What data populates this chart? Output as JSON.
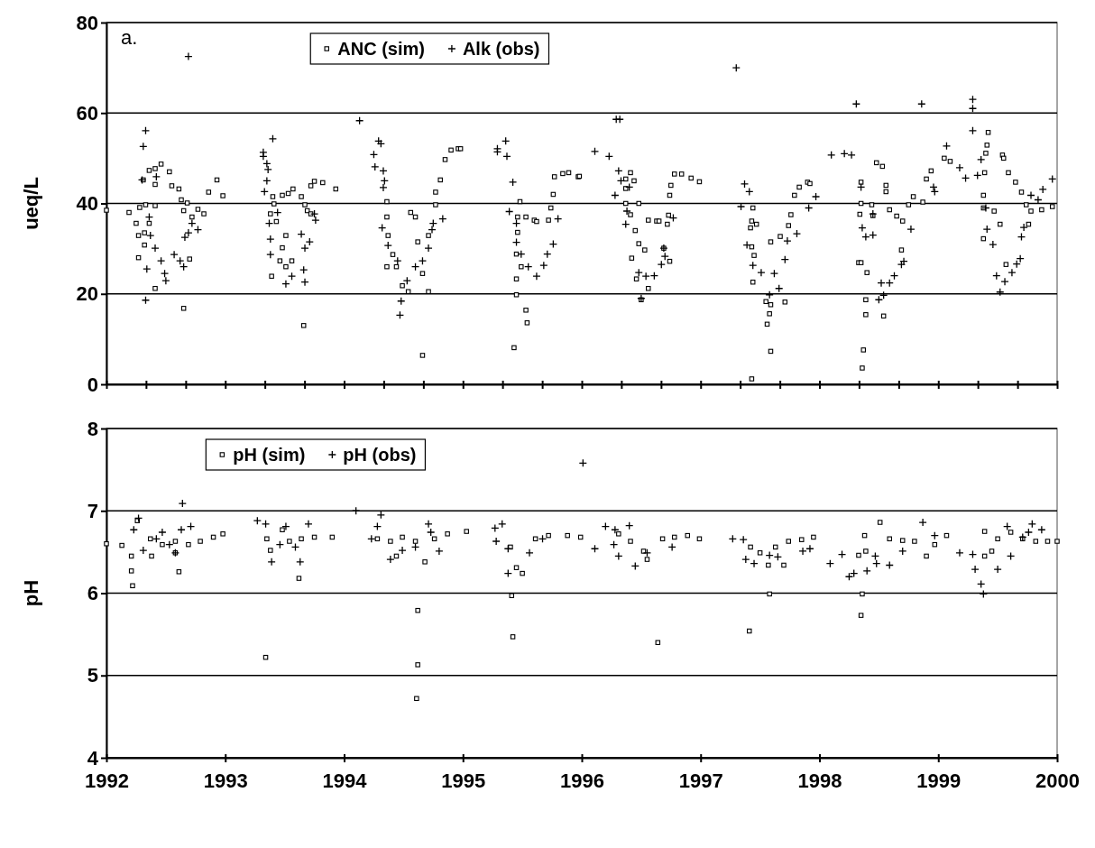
{
  "chart_data": [
    {
      "type": "scatter",
      "ylabel": "ueq/L",
      "annotations": [
        "a."
      ],
      "xlim": [
        1992,
        2000
      ],
      "ylim": [
        0,
        80
      ],
      "yticks": [
        0,
        20,
        40,
        60,
        80
      ],
      "xticks": [
        {
          "value": 1992,
          "label": null
        },
        {
          "value": 1992.333,
          "label": null
        },
        {
          "value": 1992.667,
          "label": null
        },
        {
          "value": 1993,
          "label": null
        },
        {
          "value": 1993.333,
          "label": null
        },
        {
          "value": 1993.667,
          "label": null
        },
        {
          "value": 1994,
          "label": null
        },
        {
          "value": 1994.333,
          "label": null
        },
        {
          "value": 1994.667,
          "label": null
        },
        {
          "value": 1995,
          "label": null
        },
        {
          "value": 1995.333,
          "label": null
        },
        {
          "value": 1995.667,
          "label": null
        },
        {
          "value": 1996,
          "label": null
        },
        {
          "value": 1996.333,
          "label": null
        },
        {
          "value": 1996.667,
          "label": null
        },
        {
          "value": 1997,
          "label": null
        },
        {
          "value": 1997.333,
          "label": null
        },
        {
          "value": 1997.667,
          "label": null
        },
        {
          "value": 1998,
          "label": null
        },
        {
          "value": 1998.333,
          "label": null
        },
        {
          "value": 1998.667,
          "label": null
        },
        {
          "value": 1999,
          "label": null
        },
        {
          "value": 1999.333,
          "label": null
        },
        {
          "value": 1999.667,
          "label": null
        },
        {
          "value": 2000,
          "label": null
        }
      ],
      "tick_labels": "y",
      "grid": "y",
      "legend": "top",
      "series": [
        {
          "name": "ANC (sim)",
          "color": "#000000",
          "marker": "square",
          "x": [
            1992.0,
            1992.19,
            1992.25,
            1992.27,
            1992.27,
            1992.28,
            1992.31,
            1992.36,
            1992.41,
            1992.46,
            1992.53,
            1992.55,
            1992.61,
            1992.63,
            1992.68,
            1992.65,
            1992.72,
            1992.77,
            1992.82,
            1992.86,
            1992.93,
            1992.98,
            1992.33,
            1992.32,
            1992.32,
            1992.36,
            1992.41,
            1992.65,
            1992.7,
            1992.41,
            1992.41,
            1993.39,
            1993.38,
            1993.4,
            1993.41,
            1993.48,
            1993.53,
            1993.57,
            1993.64,
            1993.67,
            1993.69,
            1993.72,
            1993.72,
            1993.75,
            1993.82,
            1993.93,
            1993.66,
            1993.43,
            1993.51,
            1993.46,
            1993.51,
            1993.56,
            1993.48,
            1994.36,
            1994.36,
            1994.37,
            1994.36,
            1994.41,
            1994.44,
            1994.49,
            1994.54,
            1994.56,
            1994.6,
            1994.62,
            1994.66,
            1994.66,
            1994.71,
            1994.71,
            1994.77,
            1994.77,
            1994.81,
            1994.85,
            1994.9,
            1994.96,
            1994.98,
            1995.45,
            1995.53,
            1995.54,
            1995.43,
            1995.48,
            1995.46,
            1995.46,
            1995.45,
            1995.49,
            1995.45,
            1995.53,
            1995.6,
            1995.62,
            1995.72,
            1995.74,
            1995.76,
            1995.77,
            1995.84,
            1995.89,
            1995.97,
            1995.98,
            1996.37,
            1996.41,
            1996.44,
            1996.37,
            1996.37,
            1996.48,
            1996.41,
            1996.45,
            1996.48,
            1996.42,
            1996.53,
            1996.46,
            1996.5,
            1996.56,
            1996.56,
            1996.63,
            1996.65,
            1996.74,
            1996.69,
            1996.72,
            1996.73,
            1996.74,
            1996.75,
            1996.78,
            1996.84,
            1996.92,
            1996.99,
            1997.44,
            1997.43,
            1997.42,
            1997.43,
            1997.45,
            1997.44,
            1997.55,
            1997.59,
            1997.58,
            1997.56,
            1997.59,
            1997.43,
            1997.71,
            1997.47,
            1997.59,
            1997.67,
            1997.74,
            1997.76,
            1997.79,
            1997.83,
            1997.9,
            1997.92,
            1998.35,
            1998.35,
            1998.34,
            1998.33,
            1998.35,
            1998.4,
            1998.39,
            1998.39,
            1998.37,
            1998.36,
            1998.54,
            1998.44,
            1998.45,
            1998.48,
            1998.53,
            1998.56,
            1998.56,
            1998.59,
            1998.65,
            1998.7,
            1998.75,
            1998.79,
            1998.9,
            1998.94,
            1998.87,
            1998.69,
            1999.05,
            1999.1,
            1999.42,
            1999.41,
            1999.4,
            1999.39,
            1999.38,
            1999.38,
            1999.38,
            1999.47,
            1999.52,
            1999.54,
            1999.55,
            1999.59,
            1999.65,
            1999.7,
            1999.74,
            1999.76,
            1999.78,
            1999.87,
            1999.96,
            1999.57
          ],
          "values": [
            38.5,
            38.0,
            35.6,
            32.9,
            28.0,
            39.1,
            45.2,
            47.3,
            47.7,
            48.7,
            47.0,
            43.9,
            43.2,
            40.8,
            40.1,
            38.4,
            37.0,
            38.7,
            37.7,
            42.5,
            45.2,
            41.7,
            39.7,
            33.5,
            30.8,
            35.6,
            21.2,
            16.8,
            27.7,
            39.5,
            44.2,
            23.9,
            37.7,
            41.5,
            39.9,
            41.8,
            42.2,
            43.2,
            41.5,
            39.7,
            38.4,
            37.7,
            43.9,
            44.9,
            44.6,
            43.2,
            13.0,
            36.0,
            32.9,
            27.3,
            26.0,
            27.3,
            30.2,
            40.4,
            37.0,
            32.9,
            26.0,
            28.7,
            26.0,
            21.8,
            20.5,
            38.0,
            37.0,
            31.5,
            24.5,
            6.4,
            20.5,
            32.9,
            39.7,
            42.5,
            45.2,
            49.7,
            51.8,
            52.1,
            52.1,
            19.8,
            16.4,
            13.6,
            8.1,
            40.4,
            37.0,
            33.6,
            28.8,
            26.0,
            23.3,
            37.0,
            36.3,
            36.0,
            36.3,
            39.0,
            42.0,
            45.9,
            46.6,
            46.8,
            45.9,
            46.0,
            45.4,
            46.8,
            45.0,
            43.3,
            40.0,
            40.0,
            37.5,
            34.0,
            31.1,
            27.9,
            29.7,
            23.3,
            18.7,
            21.2,
            36.3,
            36.1,
            36.1,
            27.2,
            30.1,
            35.4,
            37.4,
            41.8,
            44.0,
            46.5,
            46.5,
            45.6,
            44.8,
            39.0,
            36.1,
            34.6,
            30.4,
            28.5,
            22.6,
            18.3,
            17.6,
            15.6,
            13.3,
            7.3,
            1.2,
            18.2,
            35.4,
            31.5,
            32.7,
            35.1,
            37.5,
            41.8,
            43.6,
            44.7,
            44.4,
            44.7,
            40.0,
            37.6,
            26.9,
            26.9,
            24.7,
            18.7,
            15.4,
            7.6,
            3.6,
            15.1,
            39.7,
            37.3,
            49.0,
            48.2,
            44.0,
            42.6,
            38.6,
            37.2,
            36.1,
            39.7,
            41.5,
            45.4,
            47.2,
            40.3,
            29.7,
            50.0,
            49.3,
            55.7,
            52.9,
            51.1,
            46.8,
            41.8,
            39.0,
            32.2,
            38.3,
            35.4,
            50.7,
            50.0,
            46.8,
            44.7,
            42.5,
            39.7,
            35.4,
            38.3,
            38.6,
            39.3,
            26.5
          ]
        },
        {
          "name": "Alk (obs)",
          "color": "#000000",
          "marker": "cross",
          "x": [
            1992.69,
            1992.33,
            1992.31,
            1992.34,
            1992.33,
            1992.3,
            1992.36,
            1992.37,
            1992.41,
            1992.46,
            1992.49,
            1992.5,
            1992.57,
            1992.62,
            1992.65,
            1992.66,
            1992.69,
            1992.77,
            1992.72,
            1992.42,
            1993.32,
            1993.32,
            1993.4,
            1993.35,
            1993.36,
            1993.35,
            1993.33,
            1993.37,
            1993.38,
            1993.38,
            1993.44,
            1993.51,
            1993.56,
            1993.64,
            1993.67,
            1993.66,
            1993.67,
            1993.71,
            1993.75,
            1993.76,
            1994.13,
            1994.29,
            1994.31,
            1994.25,
            1994.26,
            1994.33,
            1994.34,
            1994.33,
            1994.32,
            1994.37,
            1994.45,
            1994.48,
            1994.47,
            1994.53,
            1994.6,
            1994.66,
            1994.71,
            1994.74,
            1994.75,
            1994.83,
            1995.29,
            1995.29,
            1995.36,
            1995.37,
            1995.42,
            1995.39,
            1995.45,
            1995.45,
            1995.49,
            1995.55,
            1995.62,
            1995.68,
            1995.71,
            1995.76,
            1995.8,
            1997.3,
            1996.11,
            1996.23,
            1996.29,
            1996.32,
            1996.31,
            1996.28,
            1996.33,
            1996.4,
            1996.38,
            1996.37,
            1996.48,
            1996.5,
            1996.54,
            1996.61,
            1996.67,
            1996.69,
            1996.7,
            1996.77,
            1997.37,
            1997.41,
            1997.34,
            1997.39,
            1997.44,
            1997.51,
            1997.58,
            1997.66,
            1997.62,
            1997.71,
            1997.73,
            1997.81,
            1997.91,
            1997.97,
            1998.1,
            1998.21,
            1998.27,
            1998.31,
            1998.35,
            1998.36,
            1998.39,
            1998.45,
            1998.45,
            1998.5,
            1998.54,
            1998.52,
            1998.59,
            1998.63,
            1998.69,
            1998.71,
            1998.77,
            1998.86,
            1998.96,
            1998.97,
            1999.07,
            1999.18,
            1999.23,
            1999.29,
            1999.29,
            1999.29,
            1999.33,
            1999.36,
            1999.4,
            1999.41,
            1999.46,
            1999.49,
            1999.52,
            1999.56,
            1999.62,
            1999.66,
            1999.69,
            1999.7,
            1999.72,
            1999.78,
            1999.84,
            1999.88,
            1999.96
          ],
          "values": [
            72.5,
            56.1,
            52.6,
            25.5,
            18.6,
            45.2,
            37.0,
            32.9,
            30.1,
            27.3,
            24.5,
            22.9,
            28.7,
            27.3,
            26.0,
            32.5,
            33.5,
            34.2,
            35.6,
            45.9,
            51.3,
            50.4,
            54.3,
            48.8,
            47.5,
            45.0,
            42.6,
            35.6,
            32.1,
            28.7,
            38.0,
            22.2,
            23.9,
            33.2,
            30.1,
            25.3,
            22.6,
            31.5,
            37.7,
            36.3,
            58.3,
            53.8,
            53.2,
            50.8,
            48.1,
            47.2,
            45.0,
            43.5,
            34.6,
            30.7,
            27.3,
            18.4,
            15.3,
            22.9,
            26.0,
            27.3,
            30.1,
            34.2,
            35.6,
            36.6,
            52.1,
            51.4,
            53.8,
            50.4,
            44.7,
            38.2,
            35.6,
            31.4,
            28.8,
            26.0,
            23.9,
            26.3,
            28.8,
            31.0,
            36.6,
            70.0,
            51.5,
            50.4,
            58.6,
            58.6,
            47.2,
            41.8,
            45.0,
            43.6,
            38.3,
            35.4,
            24.7,
            19.0,
            23.9,
            24.0,
            26.5,
            30.1,
            28.3,
            36.8,
            44.3,
            42.6,
            39.3,
            30.8,
            26.3,
            24.7,
            19.8,
            21.2,
            24.5,
            27.6,
            31.7,
            33.3,
            39.0,
            41.5,
            50.7,
            51.0,
            50.7,
            62.0,
            43.6,
            34.6,
            32.6,
            33.0,
            37.7,
            18.7,
            19.7,
            22.4,
            22.4,
            24.0,
            26.5,
            27.2,
            34.3,
            62.0,
            43.6,
            42.6,
            52.7,
            47.9,
            45.6,
            63.0,
            61.0,
            56.1,
            46.2,
            49.7,
            39.0,
            34.3,
            30.9,
            24.0,
            20.4,
            22.7,
            24.7,
            26.6,
            27.8,
            32.6,
            34.7,
            41.8,
            40.8,
            43.1,
            45.4
          ]
        }
      ]
    },
    {
      "type": "scatter",
      "ylabel": "pH",
      "xlim": [
        1992,
        2000
      ],
      "ylim": [
        4,
        8
      ],
      "yticks": [
        4,
        5,
        6,
        7,
        8
      ],
      "xticks": [
        1992,
        1993,
        1994,
        1995,
        1996,
        1997,
        1998,
        1999,
        2000
      ],
      "grid": "y",
      "legend": "top",
      "series": [
        {
          "name": "pH (sim)",
          "color": "#000000",
          "marker": "square",
          "x": [
            1992.0,
            1992.13,
            1992.26,
            1992.37,
            1992.47,
            1992.58,
            1992.69,
            1992.79,
            1992.9,
            1992.98,
            1992.22,
            1992.21,
            1992.21,
            1992.61,
            1992.58,
            1992.38,
            1993.35,
            1993.48,
            1993.54,
            1993.64,
            1993.75,
            1993.9,
            1993.62,
            1993.34,
            1993.38,
            1994.28,
            1994.39,
            1994.49,
            1994.6,
            1994.68,
            1994.76,
            1994.87,
            1995.03,
            1994.62,
            1994.62,
            1994.61,
            1994.44,
            1995.4,
            1995.45,
            1995.5,
            1995.61,
            1995.72,
            1995.88,
            1995.99,
            1995.41,
            1995.42,
            1996.31,
            1996.41,
            1996.52,
            1996.64,
            1996.68,
            1996.78,
            1996.89,
            1996.99,
            1996.55,
            1997.41,
            1997.42,
            1997.5,
            1997.57,
            1997.58,
            1997.63,
            1997.74,
            1997.85,
            1997.95,
            1997.7,
            1998.35,
            1998.36,
            1998.33,
            1998.38,
            1998.51,
            1998.59,
            1998.7,
            1998.8,
            1998.9,
            1998.97,
            1999.07,
            1998.39,
            1999.39,
            1999.39,
            1999.5,
            1999.61,
            1999.71,
            1999.82,
            1999.92,
            2000.0,
            1999.45
          ],
          "values": [
            6.6,
            6.58,
            6.88,
            6.66,
            6.59,
            6.63,
            6.59,
            6.63,
            6.68,
            6.72,
            6.09,
            6.27,
            6.45,
            6.26,
            6.49,
            6.45,
            6.66,
            6.77,
            6.63,
            6.66,
            6.68,
            6.68,
            6.18,
            5.22,
            6.52,
            6.66,
            6.63,
            6.68,
            6.63,
            6.38,
            6.66,
            6.72,
            6.75,
            5.79,
            5.13,
            4.72,
            6.45,
            6.56,
            6.31,
            6.24,
            6.66,
            6.7,
            6.7,
            6.68,
            5.97,
            5.47,
            6.72,
            6.63,
            6.51,
            5.4,
            6.66,
            6.68,
            6.7,
            6.66,
            6.41,
            5.54,
            6.56,
            6.49,
            6.34,
            5.99,
            6.56,
            6.63,
            6.65,
            6.68,
            6.34,
            5.73,
            5.99,
            6.46,
            6.7,
            6.86,
            6.66,
            6.64,
            6.63,
            6.45,
            6.59,
            6.7,
            6.51,
            6.75,
            6.45,
            6.66,
            6.74,
            6.66,
            6.63,
            6.63,
            6.63,
            6.51
          ]
        },
        {
          "name": "pH (obs)",
          "color": "#000000",
          "marker": "cross",
          "x": [
            1992.64,
            1996.01,
            1994.1,
            1992.27,
            1992.23,
            1992.31,
            1992.42,
            1992.53,
            1992.63,
            1992.71,
            1992.58,
            1992.47,
            1993.27,
            1993.34,
            1993.39,
            1993.46,
            1993.51,
            1993.59,
            1993.63,
            1993.7,
            1994.31,
            1994.28,
            1994.23,
            1994.39,
            1994.49,
            1994.6,
            1994.71,
            1994.8,
            1994.73,
            1995.27,
            1995.33,
            1995.28,
            1995.38,
            1995.38,
            1995.56,
            1995.67,
            1996.11,
            1996.2,
            1996.28,
            1996.4,
            1996.27,
            1996.31,
            1996.45,
            1996.55,
            1996.76,
            1997.27,
            1997.36,
            1997.38,
            1997.45,
            1997.58,
            1997.65,
            1997.86,
            1997.92,
            1998.09,
            1998.19,
            1998.25,
            1998.29,
            1998.4,
            1998.48,
            1998.59,
            1998.87,
            1998.97,
            1998.47,
            1998.7,
            1999.18,
            1999.29,
            1999.31,
            1999.36,
            1999.38,
            1999.5,
            1999.61,
            1999.71,
            1999.79,
            1999.87,
            1999.58,
            1999.76
          ],
          "values": [
            7.09,
            7.58,
            7.0,
            6.91,
            6.77,
            6.52,
            6.66,
            6.59,
            6.77,
            6.81,
            6.49,
            6.74,
            6.88,
            6.84,
            6.38,
            6.59,
            6.81,
            6.56,
            6.38,
            6.84,
            6.95,
            6.81,
            6.66,
            6.41,
            6.52,
            6.56,
            6.84,
            6.51,
            6.74,
            6.79,
            6.84,
            6.63,
            6.54,
            6.24,
            6.49,
            6.66,
            6.54,
            6.81,
            6.77,
            6.82,
            6.59,
            6.45,
            6.33,
            6.49,
            6.56,
            6.66,
            6.65,
            6.41,
            6.36,
            6.46,
            6.44,
            6.51,
            6.54,
            6.36,
            6.47,
            6.2,
            6.24,
            6.27,
            6.36,
            6.34,
            6.86,
            6.7,
            6.45,
            6.51,
            6.49,
            6.47,
            6.29,
            6.11,
            5.99,
            6.29,
            6.45,
            6.68,
            6.84,
            6.77,
            6.81,
            6.74
          ]
        }
      ]
    }
  ]
}
